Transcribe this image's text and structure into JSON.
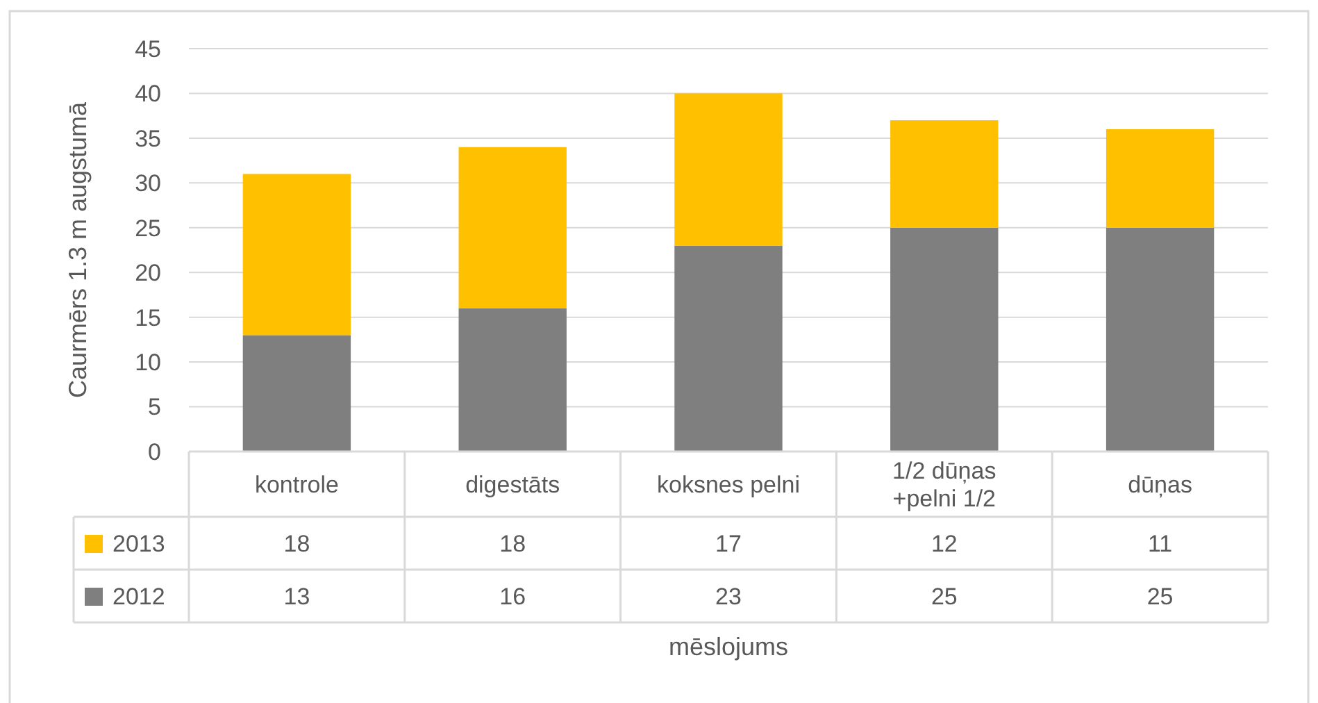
{
  "chart_data": {
    "type": "bar",
    "stacked": true,
    "xlabel": "mēslojums",
    "ylabel": "Caurmērs 1.3 m augstumā",
    "categories": [
      "kontrole",
      "digestāts",
      "koksnes pelni",
      "1/2 dūņas +pelni 1/2",
      "dūņas"
    ],
    "series": [
      {
        "name": "2012",
        "color": "#7f7f7f",
        "values": [
          13,
          16,
          23,
          25,
          25
        ]
      },
      {
        "name": "2013",
        "color": "#ffc000",
        "values": [
          18,
          18,
          17,
          12,
          11
        ]
      }
    ],
    "ylim": [
      0,
      45
    ],
    "yticks": [
      0,
      5,
      10,
      15,
      20,
      25,
      30,
      35,
      40,
      45
    ],
    "grid": "y",
    "data_labels": true,
    "legend": "bottom"
  }
}
